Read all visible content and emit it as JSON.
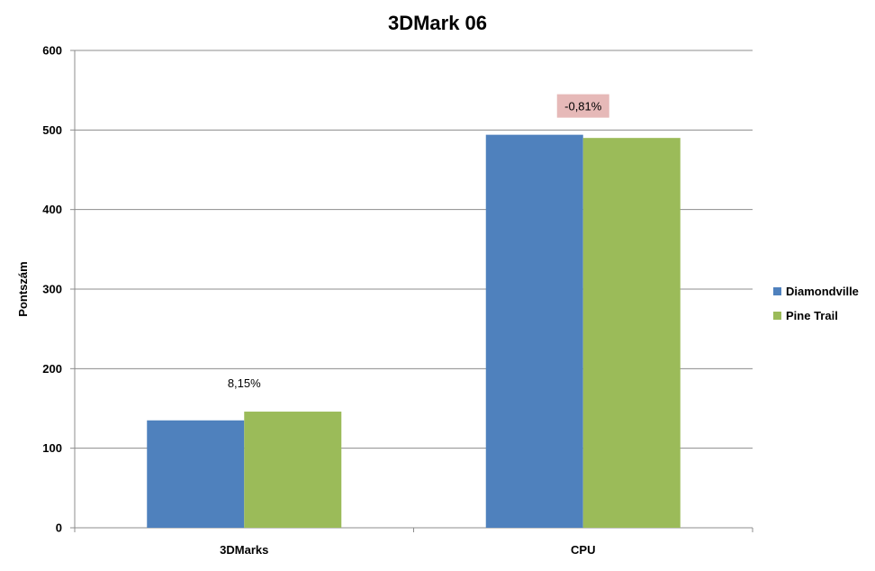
{
  "chart_data": {
    "type": "bar",
    "title": "3DMark 06",
    "xlabel": "",
    "ylabel": "Pontszám",
    "categories": [
      "3DMarks",
      "CPU"
    ],
    "series": [
      {
        "name": "Diamondville",
        "values": [
          135,
          494
        ],
        "color": "#4F81BD"
      },
      {
        "name": "Pine Trail",
        "values": [
          146,
          490
        ],
        "color": "#9BBB59"
      }
    ],
    "ylim": [
      0,
      600
    ],
    "yticks": [
      0,
      100,
      200,
      300,
      400,
      500,
      600
    ],
    "grid": true,
    "legend": "right",
    "annotations": [
      {
        "category": "3DMarks",
        "text": "8,15%",
        "highlight": false
      },
      {
        "category": "CPU",
        "text": "-0,81%",
        "highlight": true,
        "highlight_color": "#E6B9B8"
      }
    ]
  }
}
